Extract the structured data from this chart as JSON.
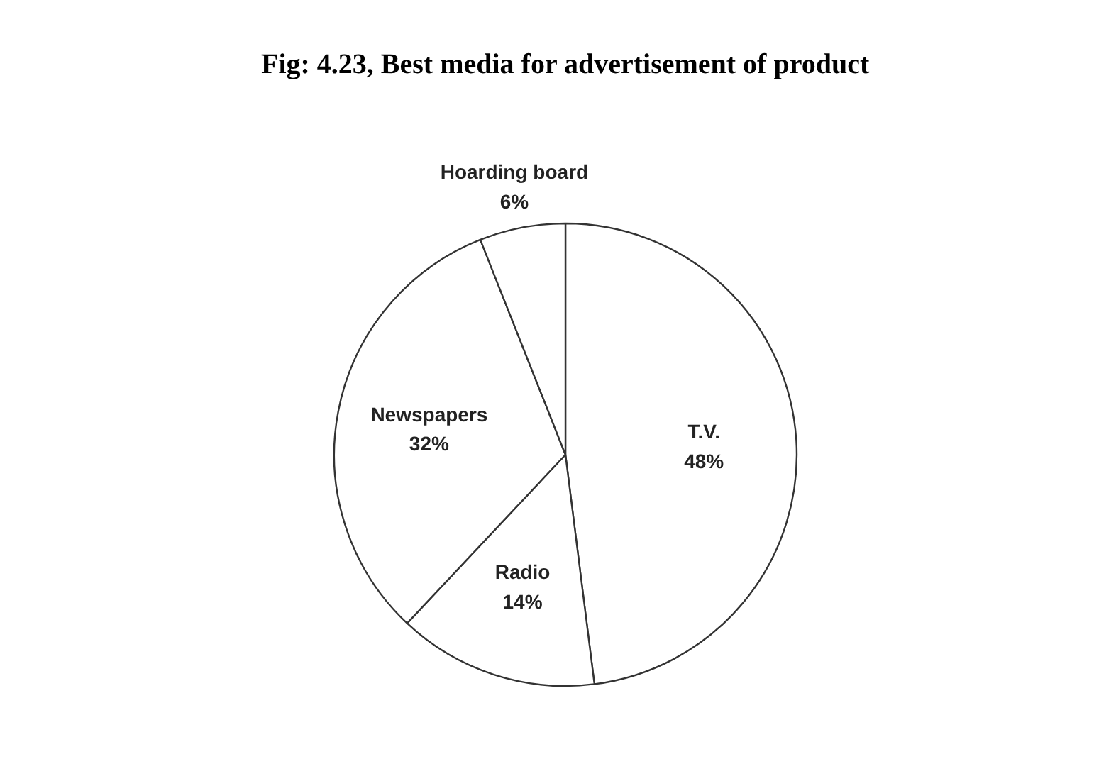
{
  "chart_data": {
    "type": "pie",
    "title": "Fig: 4.23, Best media for advertisement of product",
    "categories": [
      "T.V.",
      "Radio",
      "Newspapers",
      "Hoarding board"
    ],
    "values": [
      48,
      14,
      32,
      6
    ],
    "colors": [
      "#ffffff",
      "#ffffff",
      "#ffffff",
      "#ffffff"
    ],
    "value_labels": [
      "48%",
      "14%",
      "32%",
      "6%"
    ]
  }
}
